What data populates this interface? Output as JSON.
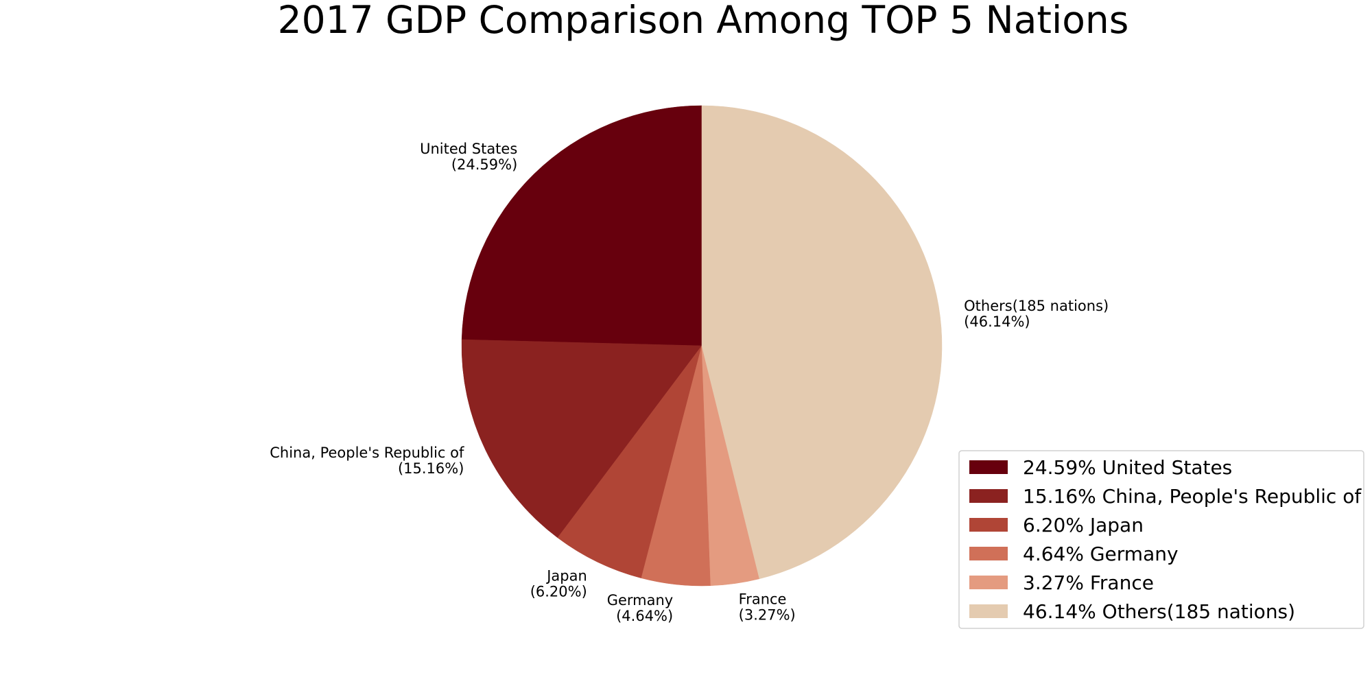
{
  "chart_data": {
    "type": "pie",
    "title": "2017 GDP Comparison Among TOP 5 Nations",
    "start_angle_deg": 90,
    "direction": "counterclockwise",
    "legend_position": "bottom-right",
    "slices": [
      {
        "name": "United States",
        "value": 24.59,
        "value_label": "(24.59%)",
        "legend_label": "24.59% United States",
        "color": "#67000d"
      },
      {
        "name": "China, People's Republic of",
        "value": 15.16,
        "value_label": "(15.16%)",
        "legend_label": "15.16% China, People's Republic of",
        "color": "#8b2220"
      },
      {
        "name": "Japan",
        "value": 6.2,
        "value_label": "(6.20%)",
        "legend_label": "6.20% Japan",
        "color": "#b04536"
      },
      {
        "name": "Germany",
        "value": 4.64,
        "value_label": "(4.64%)",
        "legend_label": "4.64% Germany",
        "color": "#d07058"
      },
      {
        "name": "France",
        "value": 3.27,
        "value_label": "(3.27%)",
        "legend_label": "3.27% France",
        "color": "#e49b80"
      },
      {
        "name": "Others(185 nations)",
        "value": 46.14,
        "value_label": "(46.14%)",
        "legend_label": "46.14% Others(185 nations)",
        "color": "#e4cbb0"
      }
    ]
  }
}
